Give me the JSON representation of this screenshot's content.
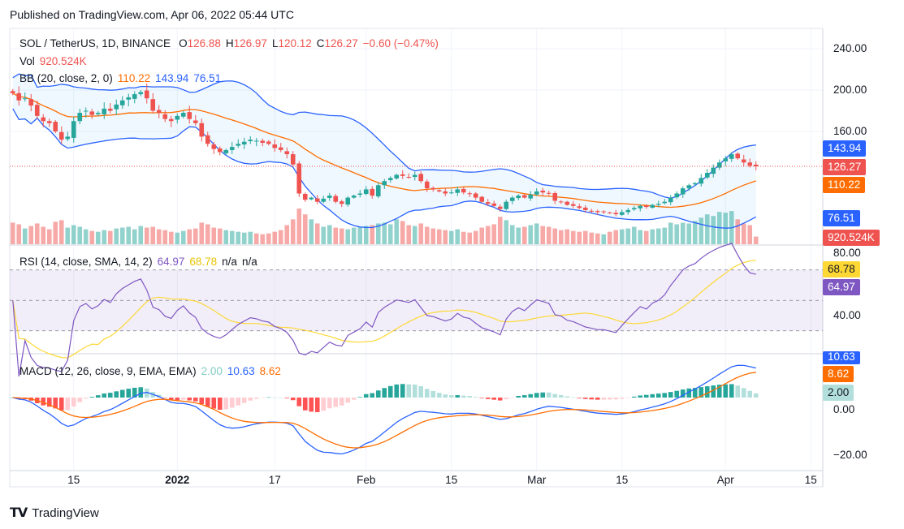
{
  "published": "Published on TradingView.com, Apr 06, 2022 05:44 UTC",
  "brand": "TradingView",
  "legend": {
    "symbol": "SOL / TetherUS, 1D, BINANCE",
    "o_label": "O",
    "o": "126.88",
    "h_label": "H",
    "h": "126.97",
    "l_label": "L",
    "l": "120.12",
    "c_label": "C",
    "c": "126.27",
    "change": "−0.60 (−0.47%)",
    "vol_label": "Vol",
    "vol": "920.524K",
    "bb_label": "BB (20, close, 2, 0)",
    "bb_basis": "110.22",
    "bb_upper": "143.94",
    "bb_lower": "76.51",
    "rsi_label": "RSI (14, close, SMA, 14, 2)",
    "rsi": "64.97",
    "rsi_ma": "68.78",
    "rsi_na1": "n/a",
    "rsi_na2": "n/a",
    "macd_label": "MACD (12, 26, close, 9, EMA, EMA)",
    "macd_hist": "2.00",
    "macd": "10.63",
    "macd_signal": "8.62"
  },
  "price_axis": [
    "240.00",
    "200.00",
    "160.00"
  ],
  "rsi_axis": [
    "80.00",
    "40.00"
  ],
  "macd_axis": [
    "0.00",
    "−20.00"
  ],
  "badges": {
    "upper": "143.94",
    "close": "126.27",
    "basis": "110.22",
    "lower": "76.51",
    "vol": "920.524K",
    "rsi_ma": "68.78",
    "rsi": "64.97",
    "macd": "10.63",
    "signal": "8.62",
    "hist": "2.00"
  },
  "time_axis": [
    {
      "label": "15",
      "day": 10
    },
    {
      "label": "2022",
      "day": 27,
      "bold": true
    },
    {
      "label": "17",
      "day": 43
    },
    {
      "label": "Feb",
      "day": 58
    },
    {
      "label": "15",
      "day": 72
    },
    {
      "label": "Mar",
      "day": 86
    },
    {
      "label": "15",
      "day": 100
    },
    {
      "label": "Apr",
      "day": 117
    },
    {
      "label": "15",
      "day": 131
    }
  ],
  "colors": {
    "up": "#26a69a",
    "down": "#ef5350",
    "bb_basis": "#ff6d00",
    "bb_band": "#2962ff",
    "rsi": "#7e57c2",
    "rsi_ma": "#fdd835",
    "macd": "#2962ff",
    "signal": "#ff6d00"
  },
  "chart_data": {
    "type": "candlestick",
    "title": "SOL / TetherUS, 1D, BINANCE",
    "x_start": "2021-12-05",
    "x_end": "2022-04-06",
    "ylim": [
      60,
      250
    ],
    "close": [
      197,
      190,
      192,
      185,
      175,
      170,
      168,
      160,
      152,
      155,
      170,
      178,
      180,
      176,
      178,
      182,
      180,
      186,
      190,
      193,
      196,
      198,
      192,
      180,
      178,
      172,
      170,
      175,
      178,
      172,
      168,
      155,
      148,
      143,
      140,
      142,
      145,
      148,
      150,
      152,
      151,
      149,
      148,
      144,
      142,
      138,
      128,
      100,
      94,
      96,
      92,
      95,
      98,
      92,
      90,
      96,
      98,
      100,
      104,
      98,
      108,
      112,
      115,
      118,
      117,
      116,
      118,
      112,
      105,
      104,
      102,
      100,
      101,
      104,
      101,
      100,
      96,
      92,
      90,
      88,
      85,
      92,
      96,
      98,
      96,
      99,
      102,
      101,
      100,
      93,
      92,
      89,
      88,
      86,
      84,
      83,
      82,
      82,
      81,
      80,
      82,
      84,
      86,
      88,
      87,
      89,
      90,
      92,
      96,
      100,
      105,
      108,
      110,
      115,
      120,
      125,
      130,
      134,
      138,
      134,
      130,
      126.88,
      126.27
    ],
    "volume_k": [
      2600,
      2400,
      1900,
      2200,
      2500,
      2100,
      1800,
      2700,
      2900,
      2000,
      2300,
      2100,
      1800,
      1600,
      1500,
      1700,
      1600,
      1900,
      2000,
      2100,
      1800,
      2200,
      2000,
      2100,
      1800,
      1700,
      1500,
      1400,
      1600,
      1800,
      1900,
      2600,
      2400,
      2000,
      1900,
      1700,
      1600,
      1500,
      1400,
      1500,
      1300,
      1200,
      1300,
      1500,
      1700,
      2300,
      3000,
      4300,
      3600,
      3000,
      2500,
      2100,
      2300,
      2000,
      1900,
      1800,
      2000,
      2100,
      2200,
      2300,
      2500,
      2600,
      2400,
      3000,
      2800,
      2300,
      2200,
      2500,
      2100,
      1900,
      1800,
      1700,
      1600,
      1800,
      1500,
      1400,
      1600,
      2000,
      2200,
      2400,
      3300,
      2900,
      2300,
      2000,
      2100,
      2300,
      2500,
      2200,
      2100,
      1900,
      1700,
      1800,
      1600,
      1500,
      1600,
      1400,
      1300,
      1200,
      1500,
      1700,
      1800,
      1900,
      2100,
      1700,
      1600,
      1800,
      1900,
      2000,
      2600,
      2400,
      2600,
      2500,
      2800,
      3200,
      3600,
      3400,
      3900,
      3800,
      4000,
      3000,
      2500,
      2300,
      920.524
    ]
  }
}
